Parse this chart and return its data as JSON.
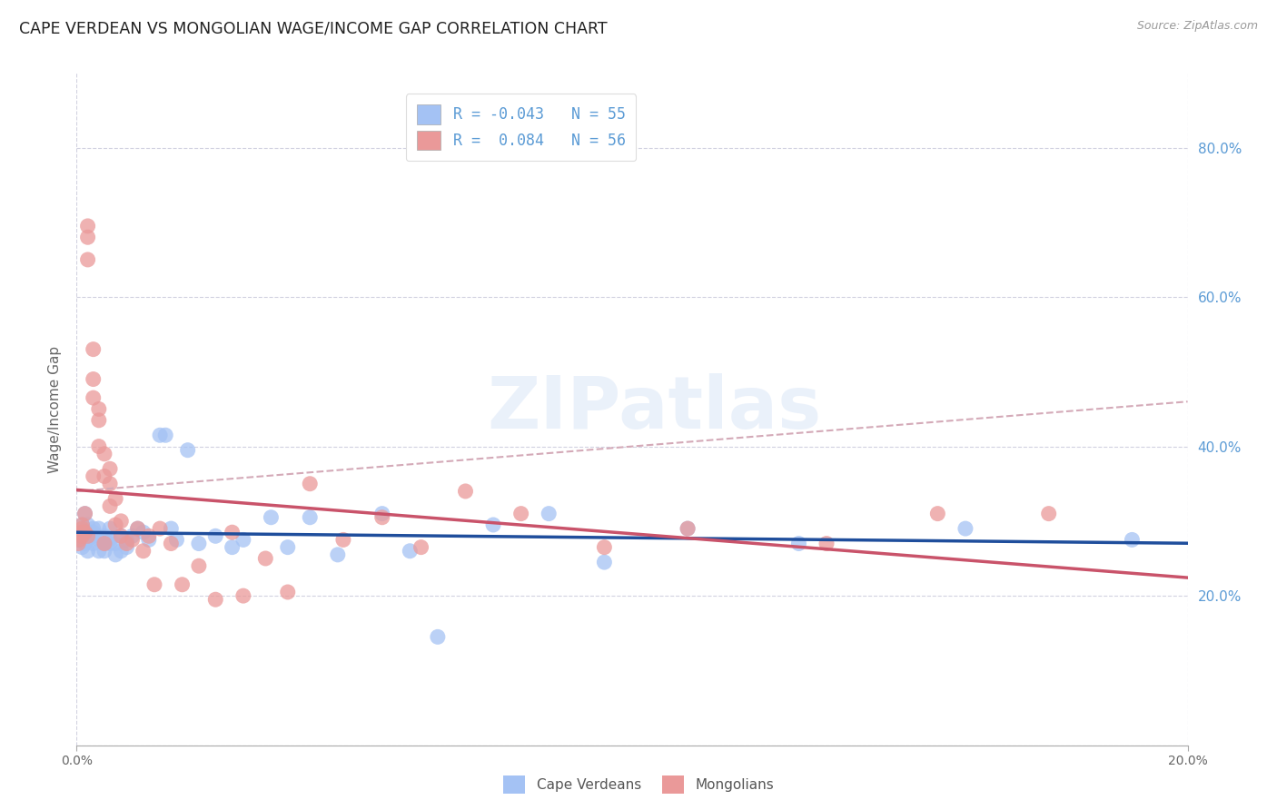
{
  "title": "CAPE VERDEAN VS MONGOLIAN WAGE/INCOME GAP CORRELATION CHART",
  "source": "Source: ZipAtlas.com",
  "ylabel": "Wage/Income Gap",
  "watermark": "ZIPatlas",
  "cv_color": "#a4c2f4",
  "mn_color": "#ea9999",
  "cv_line_color": "#1f4e9c",
  "mn_line_color": "#c9536a",
  "mn_dashed_color": "#d4aab8",
  "background_color": "#ffffff",
  "grid_color": "#ccccdd",
  "title_fontsize": 13,
  "cv_scatter_x": [
    0.0005,
    0.001,
    0.001,
    0.0015,
    0.0015,
    0.002,
    0.002,
    0.002,
    0.0025,
    0.003,
    0.003,
    0.003,
    0.003,
    0.004,
    0.004,
    0.004,
    0.005,
    0.005,
    0.005,
    0.006,
    0.006,
    0.006,
    0.007,
    0.007,
    0.008,
    0.008,
    0.009,
    0.009,
    0.01,
    0.011,
    0.012,
    0.013,
    0.015,
    0.016,
    0.017,
    0.018,
    0.02,
    0.022,
    0.025,
    0.028,
    0.03,
    0.035,
    0.038,
    0.042,
    0.047,
    0.055,
    0.06,
    0.065,
    0.075,
    0.085,
    0.095,
    0.11,
    0.13,
    0.16,
    0.19
  ],
  "cv_scatter_y": [
    0.275,
    0.265,
    0.295,
    0.27,
    0.31,
    0.26,
    0.275,
    0.295,
    0.285,
    0.27,
    0.28,
    0.29,
    0.285,
    0.26,
    0.275,
    0.29,
    0.26,
    0.27,
    0.28,
    0.27,
    0.275,
    0.29,
    0.255,
    0.27,
    0.26,
    0.28,
    0.265,
    0.275,
    0.28,
    0.29,
    0.285,
    0.275,
    0.415,
    0.415,
    0.29,
    0.275,
    0.395,
    0.27,
    0.28,
    0.265,
    0.275,
    0.305,
    0.265,
    0.305,
    0.255,
    0.31,
    0.26,
    0.145,
    0.295,
    0.31,
    0.245,
    0.29,
    0.27,
    0.29,
    0.275
  ],
  "mn_scatter_x": [
    0.0003,
    0.0005,
    0.0008,
    0.001,
    0.001,
    0.001,
    0.001,
    0.0015,
    0.0015,
    0.002,
    0.002,
    0.002,
    0.002,
    0.003,
    0.003,
    0.003,
    0.003,
    0.004,
    0.004,
    0.004,
    0.005,
    0.005,
    0.005,
    0.006,
    0.006,
    0.006,
    0.007,
    0.007,
    0.008,
    0.008,
    0.009,
    0.01,
    0.011,
    0.012,
    0.013,
    0.014,
    0.015,
    0.017,
    0.019,
    0.022,
    0.025,
    0.028,
    0.03,
    0.034,
    0.038,
    0.042,
    0.048,
    0.055,
    0.062,
    0.07,
    0.08,
    0.095,
    0.11,
    0.135,
    0.155,
    0.175
  ],
  "mn_scatter_y": [
    0.27,
    0.275,
    0.285,
    0.29,
    0.28,
    0.285,
    0.295,
    0.285,
    0.31,
    0.695,
    0.68,
    0.65,
    0.28,
    0.53,
    0.49,
    0.465,
    0.36,
    0.45,
    0.435,
    0.4,
    0.39,
    0.36,
    0.27,
    0.32,
    0.35,
    0.37,
    0.33,
    0.295,
    0.3,
    0.28,
    0.27,
    0.275,
    0.29,
    0.26,
    0.28,
    0.215,
    0.29,
    0.27,
    0.215,
    0.24,
    0.195,
    0.285,
    0.2,
    0.25,
    0.205,
    0.35,
    0.275,
    0.305,
    0.265,
    0.34,
    0.31,
    0.265,
    0.29,
    0.27,
    0.31,
    0.31
  ],
  "xlim": [
    0.0,
    0.2
  ],
  "ylim": [
    0.0,
    0.9
  ],
  "right_yticks": [
    0.2,
    0.4,
    0.6,
    0.8
  ],
  "right_ytick_labels": [
    "20.0%",
    "40.0%",
    "60.0%",
    "80.0%"
  ],
  "xtick_positions": [
    0.0,
    0.2
  ],
  "xtick_labels": [
    "0.0%",
    "20.0%"
  ],
  "legend_label_cv": "Cape Verdeans",
  "legend_label_mn": "Mongolians"
}
